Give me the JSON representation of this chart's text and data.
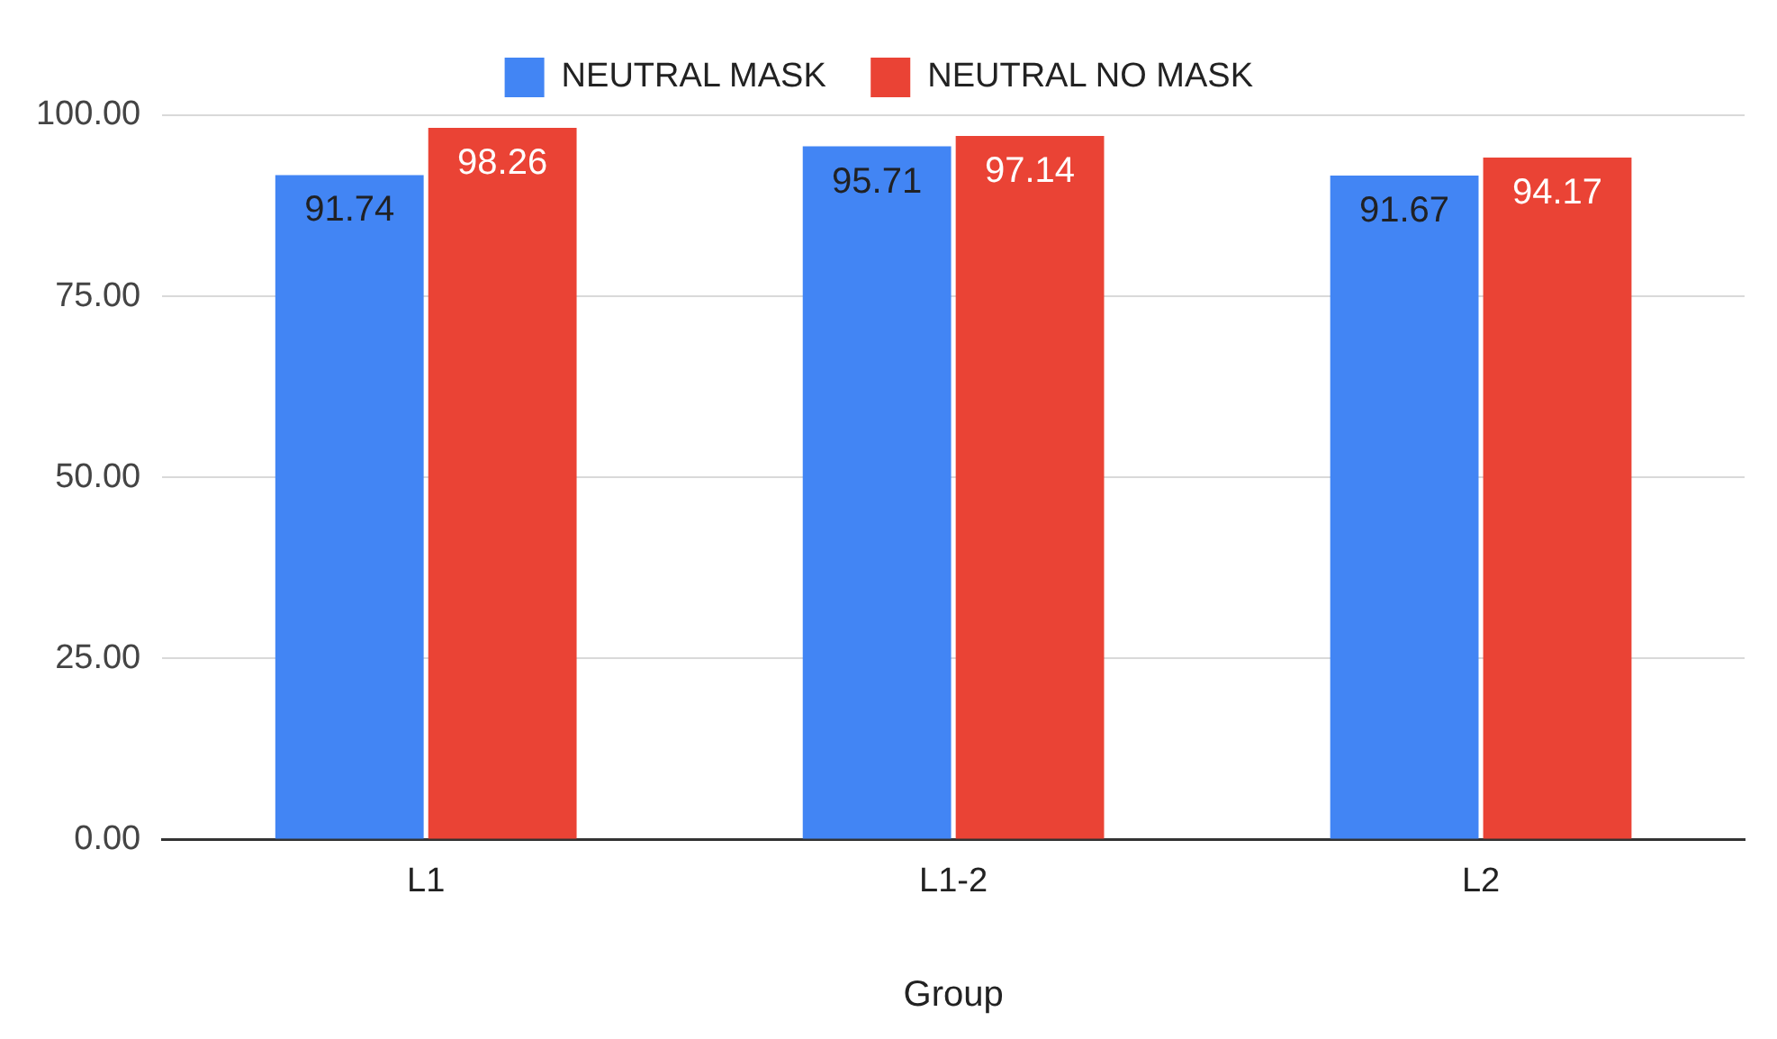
{
  "chart_data": {
    "type": "bar",
    "xlabel": "Group",
    "categories": [
      "L1",
      "L1-2",
      "L2"
    ],
    "series": [
      {
        "name": "NEUTRAL MASK",
        "color": "#4285f4",
        "values": [
          91.74,
          95.71,
          91.67
        ]
      },
      {
        "name": "NEUTRAL NO MASK",
        "color": "#ea4335",
        "values": [
          98.26,
          97.14,
          94.17
        ]
      }
    ],
    "ylim": [
      0,
      100
    ],
    "yticks": [
      {
        "value": 0,
        "label": "0.00"
      },
      {
        "value": 25,
        "label": "25.00"
      },
      {
        "value": 50,
        "label": "50.00"
      },
      {
        "value": 75,
        "label": "75.00"
      },
      {
        "value": 100,
        "label": "100.00"
      }
    ],
    "grid": "y",
    "legend": "top",
    "data_labels": true
  }
}
